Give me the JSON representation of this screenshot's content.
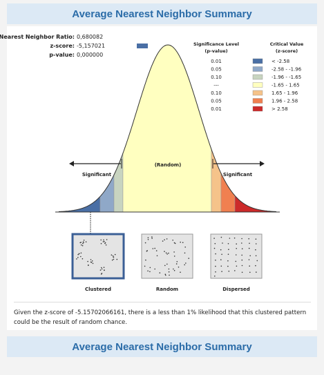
{
  "header": {
    "title": "Average Nearest Neighbor Summary"
  },
  "stats": [
    {
      "label": "Nearest Neighbor Ratio:",
      "value": "0,680082"
    },
    {
      "label": "z-score:",
      "value": "-5,157021"
    },
    {
      "label": "p-value:",
      "value": "0,000000"
    }
  ],
  "legend": {
    "significance_header": [
      "Significance Level",
      "(p-value)"
    ],
    "critical_header": [
      "Critical Value",
      "(z-score)"
    ],
    "rows": [
      {
        "significance": "0.01",
        "critical": "< -2.58"
      },
      {
        "significance": "0.05",
        "critical": "-2.58 - -1.96"
      },
      {
        "significance": "0.10",
        "critical": "-1.96 - -1.65"
      },
      {
        "significance": "---",
        "critical": "-1.65 - 1.65"
      },
      {
        "significance": "0.10",
        "critical": "1.65 - 1.96"
      },
      {
        "significance": "0.05",
        "critical": "1.96 - 2.58"
      },
      {
        "significance": "0.01",
        "critical": "> 2.58"
      }
    ]
  },
  "curve_labels": {
    "left": "Significant",
    "center": "(Random)",
    "right": "Significant"
  },
  "patterns": [
    "Clustered",
    "Random",
    "Dispersed"
  ],
  "description": "Given the z-score of -5.15702066161, there is a less than 1% likelihood that this clustered pattern could be the result of random chance.",
  "footer": {
    "title": "Average Nearest Neighbor Summary"
  }
}
